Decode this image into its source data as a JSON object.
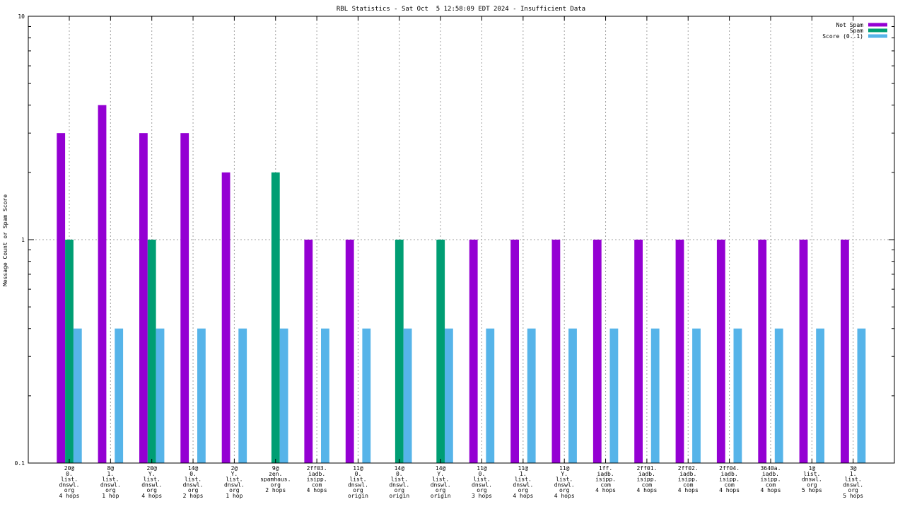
{
  "chart_data": {
    "type": "bar",
    "title": "RBL Statistics - Sat Oct  5 12:58:09 EDT 2024 - Insufficient Data",
    "xlabel": "",
    "ylabel": "Message Count or Spam Score",
    "yscale": "log",
    "ylim": [
      0.1,
      10
    ],
    "yticks": [
      {
        "value": 10,
        "label": "10"
      },
      {
        "value": 1,
        "label": "1"
      },
      {
        "value": 0.1,
        "label": "0.1"
      }
    ],
    "grid": true,
    "legend_position": "top-right",
    "categories": [
      [
        "20@",
        "0.",
        "list.",
        "dnswl.",
        "org",
        "4 hops"
      ],
      [
        "8@",
        "1.",
        "list.",
        "dnswl.",
        "org",
        "1 hop"
      ],
      [
        "20@",
        "Y.",
        "list.",
        "dnswl.",
        "org",
        "4 hops"
      ],
      [
        "14@",
        "0.",
        "list.",
        "dnswl.",
        "org",
        "2 hops"
      ],
      [
        "2@",
        "Y.",
        "list.",
        "dnswl.",
        "org",
        "1 hop"
      ],
      [
        "9@",
        "zen.",
        "spamhaus.",
        "org",
        "2 hops"
      ],
      [
        "2ff03.",
        "iadb.",
        "isipp.",
        "com",
        "4 hops"
      ],
      [
        "11@",
        "0.",
        "list.",
        "dnswl.",
        "org",
        "origin"
      ],
      [
        "14@",
        "0.",
        "list.",
        "dnswl.",
        "org",
        "origin"
      ],
      [
        "14@",
        "Y.",
        "list.",
        "dnswl.",
        "org",
        "origin"
      ],
      [
        "11@",
        "0.",
        "list.",
        "dnswl.",
        "org",
        "3 hops"
      ],
      [
        "11@",
        "1.",
        "list.",
        "dnswl.",
        "org",
        "4 hops"
      ],
      [
        "11@",
        "Y.",
        "list.",
        "dnswl.",
        "org",
        "4 hops"
      ],
      [
        "1ff.",
        "iadb.",
        "isipp.",
        "com",
        "4 hops"
      ],
      [
        "2ff01.",
        "iadb.",
        "isipp.",
        "com",
        "4 hops"
      ],
      [
        "2ff02.",
        "iadb.",
        "isipp.",
        "com",
        "4 hops"
      ],
      [
        "2ff04.",
        "iadb.",
        "isipp.",
        "com",
        "4 hops"
      ],
      [
        "3640a.",
        "iadb.",
        "isipp.",
        "com",
        "4 hops"
      ],
      [
        "1@",
        "list.",
        "dnswl.",
        "org",
        "5 hops"
      ],
      [
        "3@",
        "1.",
        "list.",
        "dnswl.",
        "org",
        "5 hops"
      ]
    ],
    "series": [
      {
        "name": "Not Spam",
        "color": "#9400d3",
        "values": [
          3,
          4,
          3,
          3,
          2,
          null,
          1,
          1,
          null,
          null,
          1,
          1,
          1,
          1,
          1,
          1,
          1,
          1,
          1,
          1
        ]
      },
      {
        "name": "Spam",
        "color": "#009e73",
        "values": [
          1,
          null,
          1,
          null,
          null,
          2,
          null,
          null,
          1,
          1,
          null,
          null,
          null,
          null,
          null,
          null,
          null,
          null,
          null,
          null
        ]
      },
      {
        "name": "Score (0..1)",
        "color": "#56b4e9",
        "values": [
          0.4,
          0.4,
          0.4,
          0.4,
          0.4,
          0.4,
          0.4,
          0.4,
          0.4,
          0.4,
          0.4,
          0.4,
          0.4,
          0.4,
          0.4,
          0.4,
          0.4,
          0.4,
          0.4,
          0.4
        ]
      }
    ]
  }
}
